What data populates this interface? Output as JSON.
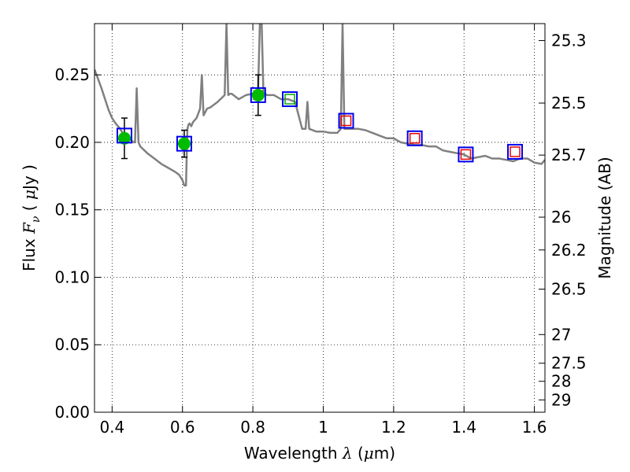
{
  "chart_data": {
    "type": "scatter",
    "title": "",
    "xlabel": {
      "prefix": "Wavelength  ",
      "symbol": "λ",
      "unit_open": " (",
      "unit_mu": "μ",
      "unit_rest": "m)"
    },
    "ylabel": {
      "prefix": "Flux  ",
      "symbol": "F",
      "subscript": "ν",
      "unit_open": "  ( ",
      "unit_mu": "μ",
      "unit_rest": "Jy )"
    },
    "y2label": "Magnitude (AB)",
    "xlim": [
      0.35,
      1.63
    ],
    "ylim": [
      0.0,
      0.288
    ],
    "xticks": [
      0.4,
      0.6,
      0.8,
      1.0,
      1.2,
      1.4,
      1.6
    ],
    "xtick_labels": [
      "0.4",
      "0.6",
      "0.8",
      "1",
      "1.2",
      "1.4",
      "1.6"
    ],
    "yticks": [
      0.0,
      0.05,
      0.1,
      0.15,
      0.2,
      0.25
    ],
    "ytick_labels": [
      "0.00",
      "0.05",
      "0.10",
      "0.15",
      "0.20",
      "0.25"
    ],
    "y2ticks": [
      25.3,
      25.5,
      25.7,
      26,
      26.2,
      26.5,
      27,
      27.5,
      28,
      29
    ],
    "y2tick_labels": [
      "25.3",
      "25.5",
      "25.7",
      "26",
      "26.2",
      "26.5",
      "27",
      "27.5",
      "28",
      "29"
    ],
    "grid": true,
    "colors": {
      "sed": "#808080",
      "obs_marker": "#00bb00",
      "model_box": "#0000ee",
      "predicted_box_green": "#00aa00",
      "predicted_box_red": "#ee0000",
      "errorbar": "#000000"
    },
    "series": [
      {
        "name": "Model SED",
        "kind": "line",
        "x": [
          0.35,
          0.36,
          0.37,
          0.38,
          0.39,
          0.4,
          0.41,
          0.42,
          0.43,
          0.44,
          0.45,
          0.46,
          0.465,
          0.47,
          0.475,
          0.48,
          0.5,
          0.52,
          0.54,
          0.56,
          0.58,
          0.59,
          0.6,
          0.605,
          0.61,
          0.612,
          0.614,
          0.617,
          0.62,
          0.625,
          0.63,
          0.64,
          0.65,
          0.655,
          0.66,
          0.67,
          0.68,
          0.7,
          0.72,
          0.725,
          0.73,
          0.735,
          0.74,
          0.76,
          0.78,
          0.8,
          0.81,
          0.815,
          0.82,
          0.825,
          0.83,
          0.84,
          0.86,
          0.88,
          0.9,
          0.92,
          0.94,
          0.95,
          0.955,
          0.96,
          0.98,
          1.0,
          1.02,
          1.04,
          1.05,
          1.055,
          1.06,
          1.08,
          1.1,
          1.12,
          1.14,
          1.16,
          1.18,
          1.2,
          1.22,
          1.24,
          1.26,
          1.28,
          1.3,
          1.32,
          1.34,
          1.36,
          1.38,
          1.4,
          1.42,
          1.44,
          1.46,
          1.48,
          1.5,
          1.52,
          1.54,
          1.56,
          1.58,
          1.6,
          1.62,
          1.63
        ],
        "y": [
          0.254,
          0.247,
          0.24,
          0.232,
          0.224,
          0.218,
          0.214,
          0.211,
          0.207,
          0.205,
          0.203,
          0.2,
          0.2,
          0.24,
          0.2,
          0.197,
          0.192,
          0.188,
          0.184,
          0.181,
          0.178,
          0.176,
          0.172,
          0.168,
          0.168,
          0.19,
          0.21,
          0.213,
          0.214,
          0.212,
          0.215,
          0.218,
          0.225,
          0.25,
          0.22,
          0.225,
          0.226,
          0.23,
          0.235,
          0.288,
          0.235,
          0.236,
          0.236,
          0.232,
          0.235,
          0.236,
          0.238,
          0.24,
          0.288,
          0.288,
          0.237,
          0.235,
          0.235,
          0.232,
          0.232,
          0.23,
          0.21,
          0.21,
          0.23,
          0.21,
          0.208,
          0.208,
          0.207,
          0.207,
          0.21,
          0.288,
          0.21,
          0.21,
          0.21,
          0.209,
          0.207,
          0.205,
          0.203,
          0.203,
          0.2,
          0.199,
          0.198,
          0.198,
          0.197,
          0.197,
          0.194,
          0.193,
          0.192,
          0.191,
          0.188,
          0.189,
          0.19,
          0.188,
          0.188,
          0.187,
          0.186,
          0.188,
          0.188,
          0.185,
          0.184,
          0.187
        ]
      },
      {
        "name": "Observed photometry",
        "kind": "points_errorbars",
        "x": [
          0.435,
          0.605,
          0.815
        ],
        "y": [
          0.203,
          0.199,
          0.235
        ],
        "yerr": [
          0.015,
          0.01,
          0.015
        ]
      },
      {
        "name": "Model photometry",
        "kind": "open_squares",
        "x": [
          0.435,
          0.605,
          0.815,
          0.905,
          1.065,
          1.26,
          1.405,
          1.545
        ],
        "y": [
          0.205,
          0.199,
          0.235,
          0.232,
          0.216,
          0.203,
          0.191,
          0.193
        ]
      },
      {
        "name": "Predicted flux (no coverage)",
        "kind": "small_open_squares",
        "x": [
          0.905
        ],
        "y": [
          0.232
        ]
      },
      {
        "name": "Predicted flux (IR)",
        "kind": "small_open_squares",
        "x": [
          1.065,
          1.26,
          1.405,
          1.545
        ],
        "y": [
          0.216,
          0.203,
          0.191,
          0.193
        ]
      }
    ]
  }
}
